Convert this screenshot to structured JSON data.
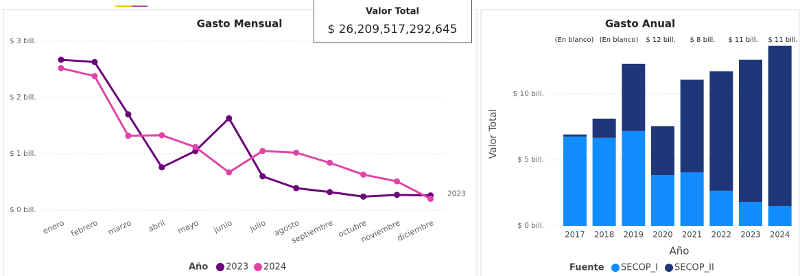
{
  "card": {
    "title": "Valor Total",
    "value": "$ 26,209,517,292,645"
  },
  "chart_data": [
    {
      "type": "line",
      "title": "Gasto Mensual",
      "categories": [
        "enero",
        "febrero",
        "marzo",
        "abril",
        "mayo",
        "junio",
        "julio",
        "agosto",
        "septiembre",
        "octubre",
        "noviembre",
        "diciembre"
      ],
      "series": [
        {
          "name": "2023",
          "color": "#6b007b",
          "values": [
            2.67,
            2.63,
            1.7,
            0.76,
            1.05,
            1.63,
            0.6,
            0.39,
            0.32,
            0.24,
            0.27,
            0.26
          ]
        },
        {
          "name": "2024",
          "color": "#e044a7",
          "values": [
            2.52,
            2.38,
            1.32,
            1.33,
            1.12,
            0.67,
            1.05,
            1.02,
            0.84,
            0.63,
            0.51,
            0.2
          ]
        }
      ],
      "legend_title": "Año",
      "ylim": [
        0,
        3
      ],
      "yticks": [
        {
          "value": 0,
          "label": "$ 0 bill."
        },
        {
          "value": 1,
          "label": "$ 1 bill."
        },
        {
          "value": 2,
          "label": "$ 2 bill."
        },
        {
          "value": 3,
          "label": "$ 3 bill."
        }
      ],
      "grid": true
    },
    {
      "type": "stacked_bar",
      "title": "Gasto Anual",
      "categories": [
        "2017",
        "2018",
        "2019",
        "2020",
        "2021",
        "2022",
        "2023",
        "2024"
      ],
      "series": [
        {
          "name": "SECOP_I",
          "color": "#118dff",
          "values": [
            6.77,
            6.67,
            7.19,
            3.85,
            4.06,
            2.66,
            1.82,
            1.51
          ]
        },
        {
          "name": "SECOP_II",
          "color": "#1f3779",
          "values": [
            0.16,
            1.46,
            5.1,
            3.7,
            7.03,
            9.06,
            10.78,
            12.14
          ]
        }
      ],
      "annotations": [
        "(En blanco)",
        "(En blanco)",
        "$ 12 bill.",
        "$ 8 bill.",
        "$ 11 bill.",
        "$ 11 bill."
      ],
      "legend_title": "Fuente",
      "xlabel": "Año",
      "ylabel": "Valor Total",
      "ylim": [
        0,
        14
      ],
      "yticks": [
        {
          "value": 0,
          "label": "$ 0 bill."
        },
        {
          "value": 5,
          "label": "$ 5 bill."
        },
        {
          "value": 10,
          "label": "$ 10 bill."
        }
      ],
      "grid": true
    }
  ]
}
